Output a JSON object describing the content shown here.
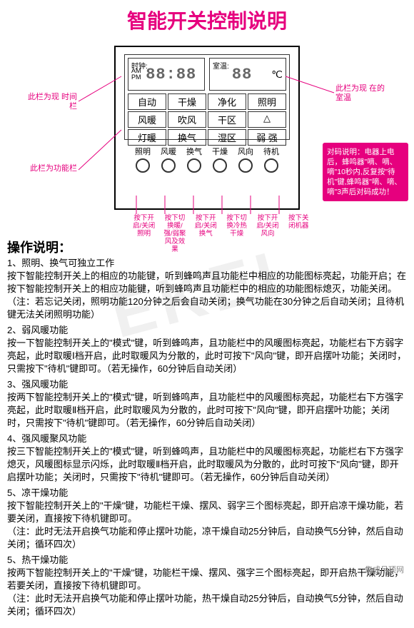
{
  "title": "智能开关控制说明",
  "colors": {
    "accent": "#e6007e",
    "border": "#000",
    "text": "#000"
  },
  "lcd": {
    "clock_label": "时钟:",
    "temp_label": "室温:",
    "ampm": "AM\nPM",
    "time": "88:88",
    "temp": "88",
    "temp_unit": "℃",
    "grid": [
      "自动",
      "干燥",
      "净化",
      "照明",
      "风暖",
      "吹风",
      "干区",
      "△",
      "灯暖",
      "换气",
      "湿区",
      "弱 强"
    ]
  },
  "circles": [
    "照明",
    "风暖",
    "换气",
    "干燥",
    "风向",
    "待机"
  ],
  "callouts": {
    "left1": "此栏为现\n时间栏",
    "left2": "此栏为功能栏",
    "right1": "此栏为现\n在的室温"
  },
  "pink_box": "对码说明：电器上电后，蜂鸣器\"嘀、嘀、嘀\"10秒内,反复按\"待机\"键,蜂鸣器\"嘀、嘀、嘀\"3声后对码成功！",
  "arrow_labels": [
    "按下开启/关闭照明",
    "按下切换暖/强/弱聚风及效果",
    "按下开启/关闭换气",
    "按下切换冷热干燥",
    "按下开启/关闭风向",
    "按下关闭机器"
  ],
  "instructions_title": "操作说明：",
  "items": [
    {
      "n": "1、",
      "t": "照明、换气可独立工作",
      "b": "按下智能控制开关上的相应的功能键，听到蜂鸣声且功能栏中相应的功能图标亮起，功能开启；在按下智能控制开关上的相应功能键，听到蜂鸣声且功能栏中的相应的功能图标熄灭，功能关闭。\n（注：若忘记关闭，照明功能120分钟之后会自动关闭；换气功能在30分钟之后自动关闭；且待机键无法关闭照明功能）"
    },
    {
      "n": "2、",
      "t": "弱风暖功能",
      "b": "按一下智能控制开关上的\"模式\"键，听到蜂鸣声，且功能栏中的风暖图标亮起，功能栏右下方弱字亮起，此时取暖Ⅰ档开启，此时取暖风为分散的，此时可按下\"风向\"键，即开启摆叶功能；关闭时，只需按下\"待机\"键即可。（若无操作，60分钟后自动关闭）"
    },
    {
      "n": "3、",
      "t": "强风暖功能",
      "b": "按两下智能控制开关上的\"模式\"键，听到蜂鸣声，且功能栏中的风暖图标亮起，功能栏右下方强字亮起，此时取暖Ⅱ档开启，此时取暖风为分散的，此时可按下\"风向\"键，即开启摆叶功能；关闭时，只需按下\"待机\"键即可。（若无操作，60分钟后自动关闭）"
    },
    {
      "n": "4、",
      "t": "强风暖聚风功能",
      "b": "按三下智能控制开关上的\"模式\"键，听到蜂鸣声，且功能栏中的风暖图标亮起，功能栏右下方强字熄灭，风暖图标显示闪烁，此时取暖Ⅱ档开启，此时取暖风为分散的，此时可按下\"风向\"键，即开启摆叶功能；关闭时，只需按下\"待机\"键即可。（若无操作，60分钟后自动关闭）"
    },
    {
      "n": "5、",
      "t": "凉干燥功能",
      "b": "按下智能控制开关上的\"干燥\"键，功能栏干燥、摆风、弱字三个图标亮起，即开启凉干燥功能，若要关闭，直接按下待机键即可。\n（注：此时无法开启换气功能和停止摆叶功能，凉干燥自动25分钟后，自动换气5分钟，然后自动关闭；循环四次）"
    },
    {
      "n": "5、",
      "t": "热干燥功能",
      "b": "按两下智能控制开关上的\"干燥\"键，功能栏干燥、摆风、强字三个图标亮起，即开启热干燥功能，若要关闭，直接按下待机键即可。\n（注：此时无法开启换气功能和停止摆叶功能，热干燥自动25分钟后，自动换气5分钟，然后自动关闭；循环四次）"
    }
  ],
  "watermark": "EKEL",
  "logo_text": "集成吊顶网"
}
